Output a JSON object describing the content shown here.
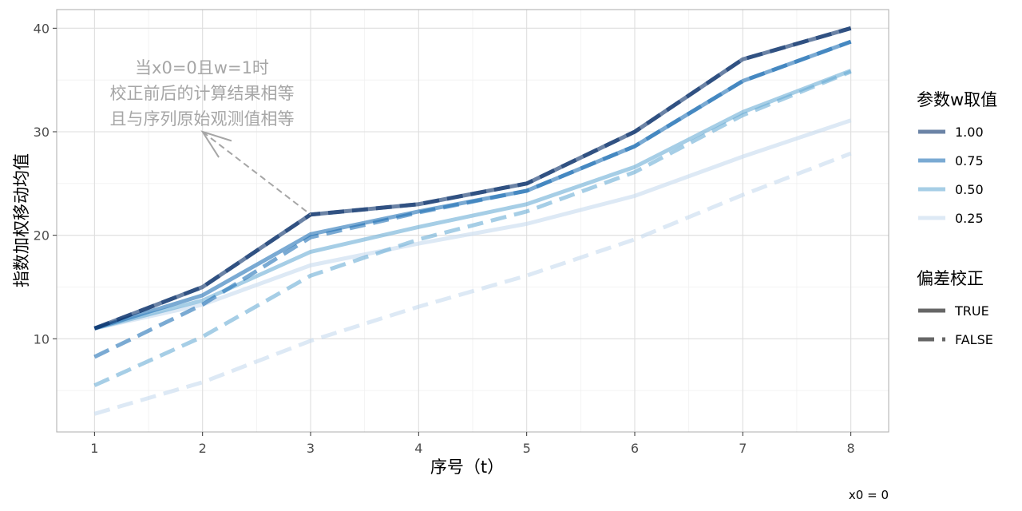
{
  "chart_data": {
    "type": "line",
    "title": "",
    "xlabel": "序号（t）",
    "ylabel": "指数加权移动均值",
    "caption": "x0 = 0",
    "x": [
      1,
      2,
      3,
      4,
      5,
      6,
      7,
      8
    ],
    "xlim": [
      0.65,
      8.35
    ],
    "ylim": [
      1,
      41.8
    ],
    "yticks": [
      10,
      20,
      30,
      40
    ],
    "grid": true,
    "annotation": {
      "lines": [
        "当x0=0且w=1时",
        "校正前后的计算结果相等",
        "且与序列原始观测值相等"
      ],
      "arrow_from": [
        2,
        30
      ],
      "arrow_to": [
        3,
        22
      ]
    },
    "legend_w": {
      "title": "参数w取值",
      "entries": [
        {
          "label": "1.00",
          "color": "#08306b"
        },
        {
          "label": "0.75",
          "color": "#2171b5"
        },
        {
          "label": "0.50",
          "color": "#6baed6"
        },
        {
          "label": "0.25",
          "color": "#c6dbef"
        }
      ]
    },
    "legend_bias": {
      "title": "偏差校正",
      "entries": [
        {
          "label": "TRUE",
          "dash": "solid"
        },
        {
          "label": "FALSE",
          "dash": "dashed"
        }
      ]
    },
    "series": [
      {
        "w": "1.00",
        "bias": "TRUE",
        "color": "#08306b",
        "values": [
          11,
          15,
          22,
          23,
          25,
          30,
          37,
          40
        ]
      },
      {
        "w": "1.00",
        "bias": "FALSE",
        "color": "#08306b",
        "values": [
          11,
          15,
          22,
          23,
          25,
          30,
          37,
          40
        ]
      },
      {
        "w": "0.75",
        "bias": "TRUE",
        "color": "#2171b5",
        "values": [
          11,
          14.2,
          20.1,
          22.3,
          24.3,
          28.6,
          34.9,
          38.7
        ]
      },
      {
        "w": "0.75",
        "bias": "FALSE",
        "color": "#2171b5",
        "values": [
          8.25,
          13.3,
          19.8,
          22.2,
          24.3,
          28.6,
          34.9,
          38.7
        ]
      },
      {
        "w": "0.50",
        "bias": "TRUE",
        "color": "#6baed6",
        "values": [
          11,
          13.7,
          18.4,
          20.8,
          23.0,
          26.6,
          31.9,
          35.9
        ]
      },
      {
        "w": "0.50",
        "bias": "FALSE",
        "color": "#6baed6",
        "values": [
          5.5,
          10.2,
          16.1,
          19.6,
          22.3,
          26.1,
          31.6,
          35.8
        ]
      },
      {
        "w": "0.25",
        "bias": "TRUE",
        "color": "#c6dbef",
        "values": [
          11,
          13.3,
          17.1,
          19.2,
          21.1,
          23.8,
          27.6,
          31.1
        ]
      },
      {
        "w": "0.25",
        "bias": "FALSE",
        "color": "#c6dbef",
        "values": [
          2.75,
          5.8,
          9.8,
          13.1,
          16.1,
          19.6,
          23.9,
          27.9
        ]
      }
    ]
  }
}
